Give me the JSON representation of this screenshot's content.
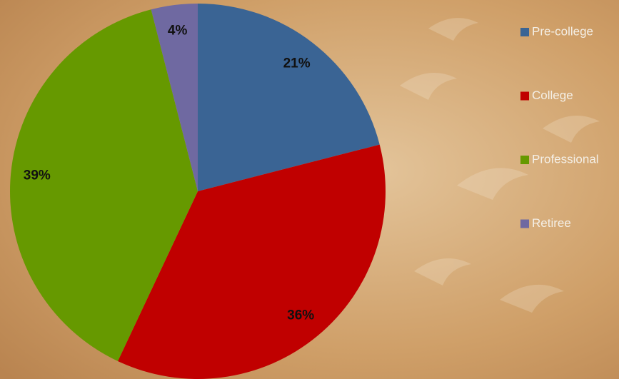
{
  "chart_data": {
    "type": "pie",
    "categories": [
      "Pre-college",
      "College",
      "Professional",
      "Retiree"
    ],
    "values": [
      21,
      36,
      39,
      4
    ],
    "value_labels": [
      "21%",
      "36%",
      "39%",
      "4%"
    ],
    "colors": [
      "#3a6494",
      "#c00000",
      "#669900",
      "#6f69a1"
    ],
    "legend": "right"
  }
}
